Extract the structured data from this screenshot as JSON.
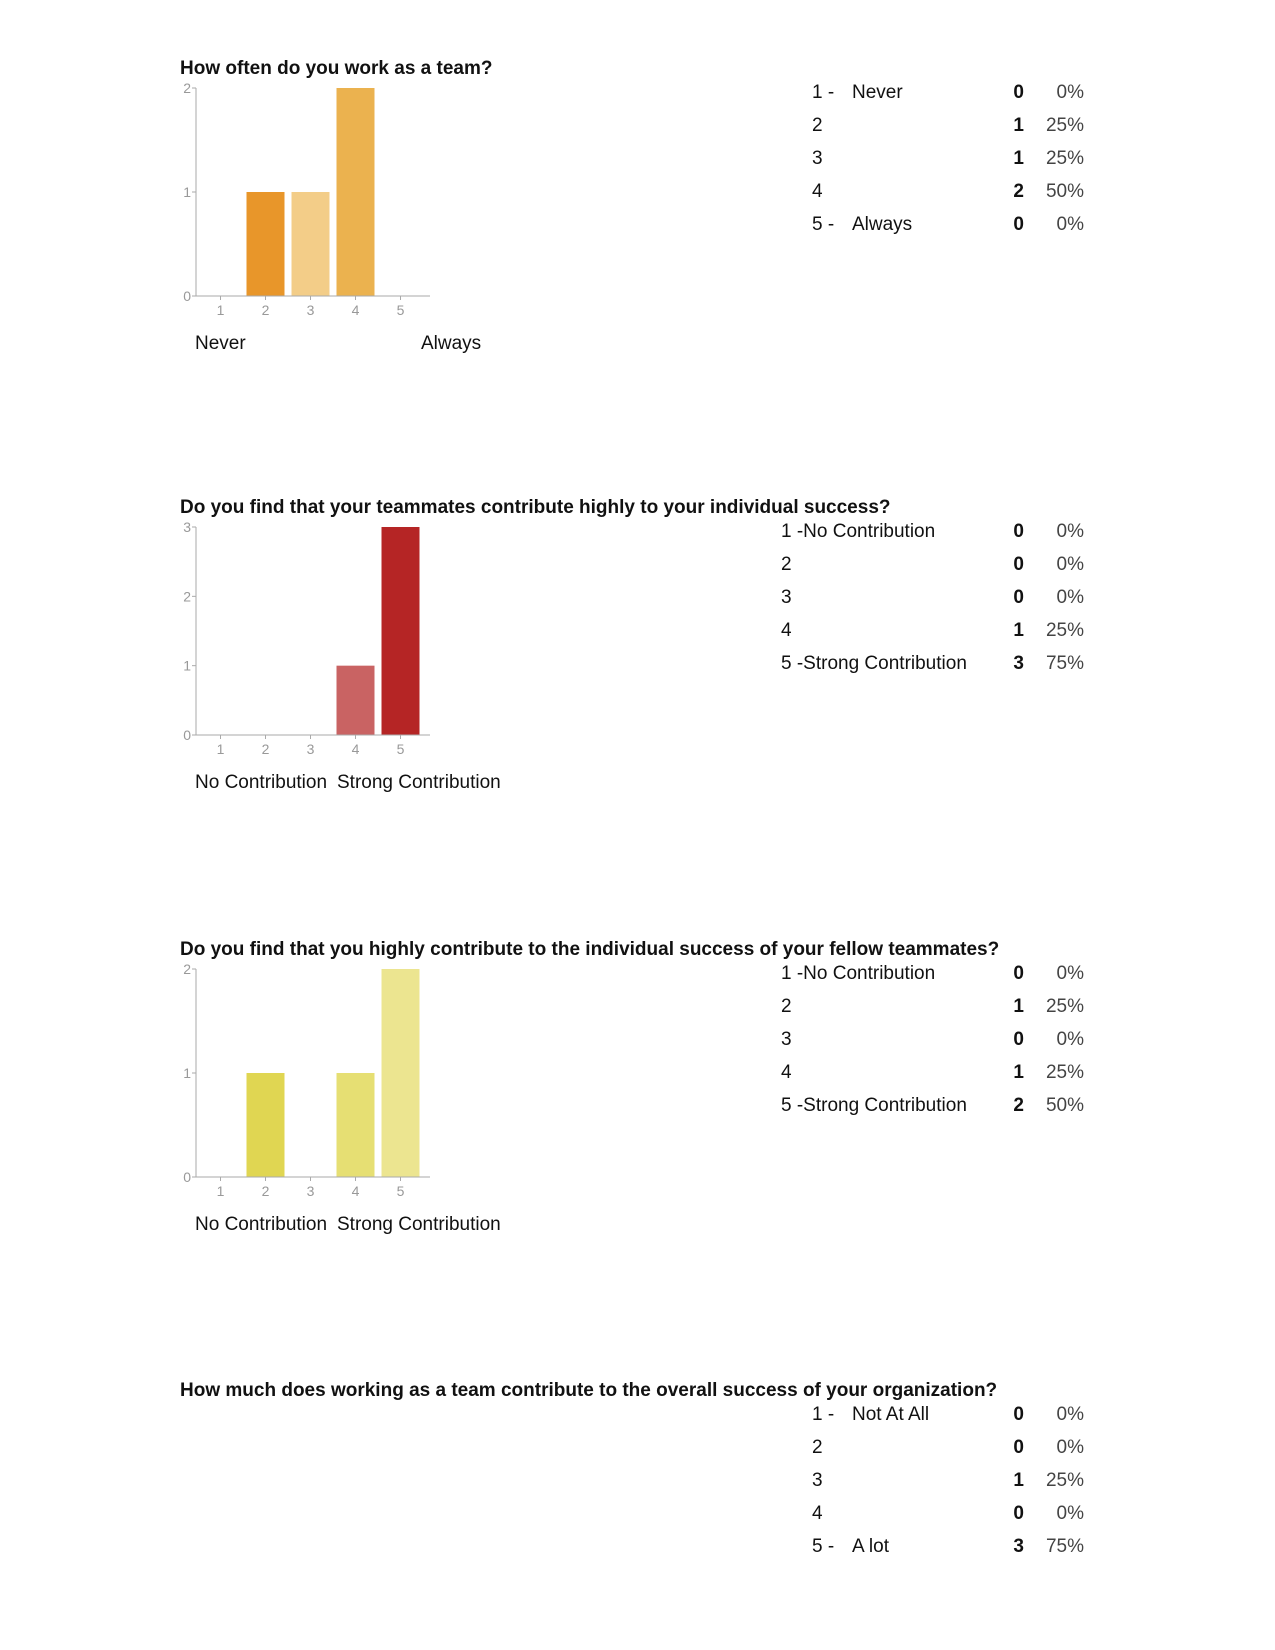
{
  "sections": [
    {
      "title": "How often do you work as a team?",
      "low_label": "Never",
      "high_label": "Always",
      "rows": [
        {
          "num": "1 -",
          "label": "Never",
          "count": "0",
          "pct": "0%"
        },
        {
          "num": "2",
          "label": "",
          "count": "1",
          "pct": "25%"
        },
        {
          "num": "3",
          "label": "",
          "count": "1",
          "pct": "25%"
        },
        {
          "num": "4",
          "label": "",
          "count": "2",
          "pct": "50%"
        },
        {
          "num": "5 -",
          "label": "Always",
          "count": "0",
          "pct": "0%"
        }
      ]
    },
    {
      "title": "Do you find that your teammates contribute highly to your individual success?",
      "low_label": "No Contribution",
      "high_label": "Strong Contribution",
      "rows": [
        {
          "num": "1 -No Contribution",
          "label": "",
          "count": "0",
          "pct": "0%"
        },
        {
          "num": "2",
          "label": "",
          "count": "0",
          "pct": "0%"
        },
        {
          "num": "3",
          "label": "",
          "count": "0",
          "pct": "0%"
        },
        {
          "num": "4",
          "label": "",
          "count": "1",
          "pct": "25%"
        },
        {
          "num": "5 -Strong Contribution",
          "label": "",
          "count": "3",
          "pct": "75%"
        }
      ]
    },
    {
      "title": "Do you find that you highly contribute to the individual success of your fellow teammates?",
      "low_label": "No Contribution",
      "high_label": "Strong Contribution",
      "rows": [
        {
          "num": "1 -No Contribution",
          "label": "",
          "count": "0",
          "pct": "0%"
        },
        {
          "num": "2",
          "label": "",
          "count": "1",
          "pct": "25%"
        },
        {
          "num": "3",
          "label": "",
          "count": "0",
          "pct": "0%"
        },
        {
          "num": "4",
          "label": "",
          "count": "1",
          "pct": "25%"
        },
        {
          "num": "5 -Strong Contribution",
          "label": "",
          "count": "2",
          "pct": "50%"
        }
      ]
    },
    {
      "title": "How much does working as a team contribute to the overall success of your organization?",
      "rows": [
        {
          "num": "1 -",
          "label": "Not At All",
          "count": "0",
          "pct": "0%"
        },
        {
          "num": "2",
          "label": "",
          "count": "0",
          "pct": "0%"
        },
        {
          "num": "3",
          "label": "",
          "count": "1",
          "pct": "25%"
        },
        {
          "num": "4",
          "label": "",
          "count": "0",
          "pct": "0%"
        },
        {
          "num": "5 -",
          "label": "A lot",
          "count": "3",
          "pct": "75%"
        }
      ]
    }
  ],
  "chart_data": [
    {
      "type": "bar",
      "title": "How often do you work as a team?",
      "categories": [
        "1",
        "2",
        "3",
        "4",
        "5"
      ],
      "values": [
        0,
        1,
        1,
        2,
        0
      ],
      "ylim": [
        0,
        2
      ],
      "yticks": [
        "0",
        "1",
        "2"
      ],
      "colors": [
        "#e8962a",
        "#e8962a",
        "#f3cd88",
        "#ebb24f",
        "#ebb24f"
      ],
      "grid": false
    },
    {
      "type": "bar",
      "title": "Do you find that your teammates contribute highly to your individual success?",
      "categories": [
        "1",
        "2",
        "3",
        "4",
        "5"
      ],
      "values": [
        0,
        0,
        0,
        1,
        3
      ],
      "ylim": [
        0,
        3
      ],
      "yticks": [
        "0",
        "1",
        "2",
        "3"
      ],
      "colors": [
        "#b52525",
        "#b52525",
        "#b52525",
        "#c96363",
        "#b52525"
      ],
      "grid": false
    },
    {
      "type": "bar",
      "title": "Do you find that you highly contribute to the individual success of your fellow teammates?",
      "categories": [
        "1",
        "2",
        "3",
        "4",
        "5"
      ],
      "values": [
        0,
        1,
        0,
        1,
        2
      ],
      "ylim": [
        0,
        2
      ],
      "yticks": [
        "0",
        "1",
        "2"
      ],
      "colors": [
        "#e0d652",
        "#e0d652",
        "#e0d652",
        "#e6df73",
        "#ece590"
      ],
      "grid": false
    }
  ]
}
